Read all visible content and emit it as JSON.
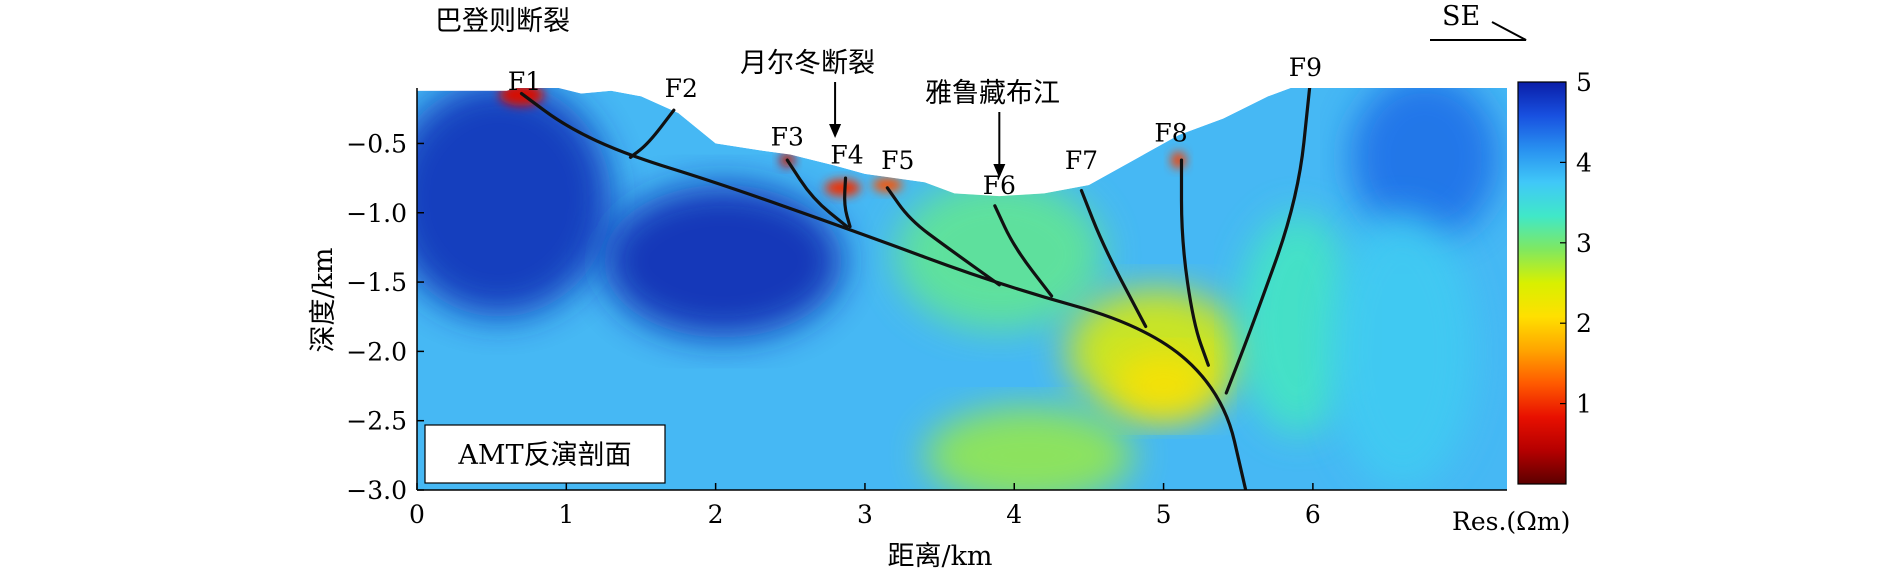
{
  "chart_data": {
    "type": "heatmap",
    "title": "",
    "xlabel": "距离/km",
    "ylabel": "深度/km",
    "xlim": [
      0,
      7.3
    ],
    "ylim": [
      -3.0,
      -0.1
    ],
    "xticks": [
      "0",
      "1",
      "2",
      "3",
      "4",
      "5",
      "6"
    ],
    "yticks": [
      "−0.5",
      "−1.0",
      "−1.5",
      "−2.0",
      "−2.5",
      "−3.0"
    ],
    "legend_box": "AMT反演剖面",
    "colorbar": {
      "title": "Res.(Ωm)",
      "min": 0,
      "max": 5,
      "ticks": [
        "1",
        "2",
        "3",
        "4",
        "5"
      ],
      "placement": "right",
      "colors": [
        "#5c0000",
        "#b50000",
        "#e81000",
        "#ff5a00",
        "#ffa500",
        "#ffe000",
        "#d8f000",
        "#80e860",
        "#40e8c8",
        "#40c8f8",
        "#2890f0",
        "#1850e0",
        "#0a1ea8"
      ]
    },
    "surface_profile": [
      [
        0,
        -0.12
      ],
      [
        0.6,
        -0.12
      ],
      [
        0.8,
        -0.06
      ],
      [
        1.1,
        -0.14
      ],
      [
        1.3,
        -0.12
      ],
      [
        1.5,
        -0.16
      ],
      [
        1.75,
        -0.28
      ],
      [
        2.0,
        -0.5
      ],
      [
        2.3,
        -0.55
      ],
      [
        2.5,
        -0.58
      ],
      [
        2.8,
        -0.66
      ],
      [
        3.0,
        -0.72
      ],
      [
        3.4,
        -0.78
      ],
      [
        3.6,
        -0.86
      ],
      [
        3.9,
        -0.88
      ],
      [
        4.2,
        -0.86
      ],
      [
        4.5,
        -0.8
      ],
      [
        4.8,
        -0.62
      ],
      [
        5.1,
        -0.44
      ],
      [
        5.4,
        -0.32
      ],
      [
        5.7,
        -0.16
      ],
      [
        5.95,
        -0.06
      ],
      [
        6.2,
        0.0
      ],
      [
        6.6,
        -0.02
      ],
      [
        7.3,
        -0.08
      ]
    ],
    "resistivity_zones": [
      {
        "x": 0.55,
        "y": -0.9,
        "rx": 0.75,
        "ry": 0.85,
        "value": 4.9
      },
      {
        "x": 2.05,
        "y": -1.35,
        "rx": 0.8,
        "ry": 0.55,
        "value": 4.95
      },
      {
        "x": 6.75,
        "y": -0.6,
        "rx": 0.5,
        "ry": 0.6,
        "value": 4.4
      },
      {
        "x": 3.9,
        "y": -1.3,
        "rx": 0.7,
        "ry": 0.55,
        "value": 3.1
      },
      {
        "x": 4.95,
        "y": -2.0,
        "rx": 0.6,
        "ry": 0.45,
        "value": 2.4
      },
      {
        "x": 5.0,
        "y": -2.25,
        "rx": 0.35,
        "ry": 0.25,
        "value": 2.1
      },
      {
        "x": 4.1,
        "y": -2.75,
        "rx": 0.7,
        "ry": 0.35,
        "value": 2.8
      },
      {
        "x": 5.9,
        "y": -1.8,
        "rx": 0.4,
        "ry": 0.8,
        "value": 3.3
      },
      {
        "x": 6.6,
        "y": -2.0,
        "rx": 0.5,
        "ry": 1.0,
        "value": 3.7
      },
      {
        "x": 0.7,
        "y": -0.15,
        "rx": 0.15,
        "ry": 0.08,
        "value": 0.7
      },
      {
        "x": 2.48,
        "y": -0.62,
        "rx": 0.05,
        "ry": 0.05,
        "value": 0.6
      },
      {
        "x": 2.85,
        "y": -0.82,
        "rx": 0.12,
        "ry": 0.06,
        "value": 1.0
      },
      {
        "x": 3.15,
        "y": -0.8,
        "rx": 0.1,
        "ry": 0.05,
        "value": 1.2
      },
      {
        "x": 5.1,
        "y": -0.62,
        "rx": 0.05,
        "ry": 0.06,
        "value": 1.1
      }
    ],
    "faults": [
      {
        "name": "F1",
        "label": [
          0.72,
          -0.05
        ],
        "line": [
          [
            0.7,
            -0.14
          ],
          [
            1.0,
            -0.38
          ],
          [
            1.4,
            -0.58
          ],
          [
            2.0,
            -0.78
          ],
          [
            2.9,
            -1.12
          ],
          [
            3.9,
            -1.52
          ],
          [
            4.9,
            -1.82
          ],
          [
            5.4,
            -2.3
          ],
          [
            5.55,
            -3.0
          ]
        ]
      },
      {
        "name": "F2",
        "label": [
          1.77,
          -0.1
        ],
        "line": [
          [
            1.72,
            -0.26
          ],
          [
            1.55,
            -0.5
          ],
          [
            1.43,
            -0.6
          ]
        ]
      },
      {
        "name": "F3",
        "label": [
          2.48,
          -0.45
        ],
        "line": [
          [
            2.48,
            -0.62
          ],
          [
            2.65,
            -0.9
          ],
          [
            2.88,
            -1.1
          ]
        ]
      },
      {
        "name": "F4",
        "label": [
          2.88,
          -0.58
        ],
        "line": [
          [
            2.87,
            -0.75
          ],
          [
            2.86,
            -0.95
          ],
          [
            2.9,
            -1.1
          ]
        ]
      },
      {
        "name": "F5",
        "label": [
          3.22,
          -0.62
        ],
        "line": [
          [
            3.15,
            -0.82
          ],
          [
            3.3,
            -1.05
          ],
          [
            3.55,
            -1.25
          ],
          [
            3.9,
            -1.52
          ]
        ]
      },
      {
        "name": "F6",
        "label": [
          3.9,
          -0.8
        ],
        "line": [
          [
            3.87,
            -0.95
          ],
          [
            4.0,
            -1.25
          ],
          [
            4.25,
            -1.6
          ]
        ]
      },
      {
        "name": "F7",
        "label": [
          4.45,
          -0.62
        ],
        "line": [
          [
            4.45,
            -0.84
          ],
          [
            4.6,
            -1.25
          ],
          [
            4.88,
            -1.82
          ]
        ]
      },
      {
        "name": "F8",
        "label": [
          5.05,
          -0.42
        ],
        "line": [
          [
            5.12,
            -0.62
          ],
          [
            5.12,
            -1.2
          ],
          [
            5.2,
            -1.8
          ],
          [
            5.3,
            -2.1
          ]
        ]
      },
      {
        "name": "F9",
        "label": [
          5.95,
          0.05
        ],
        "line": [
          [
            5.98,
            -0.08
          ],
          [
            5.9,
            -0.9
          ],
          [
            5.6,
            -1.8
          ],
          [
            5.42,
            -2.3
          ]
        ]
      }
    ],
    "annotations": [
      {
        "text": "巴登则断裂",
        "arrow": false
      },
      {
        "text": "月尔冬断裂",
        "arrow": true,
        "target_x": 2.8
      },
      {
        "text": "雅鲁藏布江",
        "arrow": true,
        "target_x": 3.9
      },
      {
        "text": "SE",
        "arrow": false
      }
    ]
  }
}
